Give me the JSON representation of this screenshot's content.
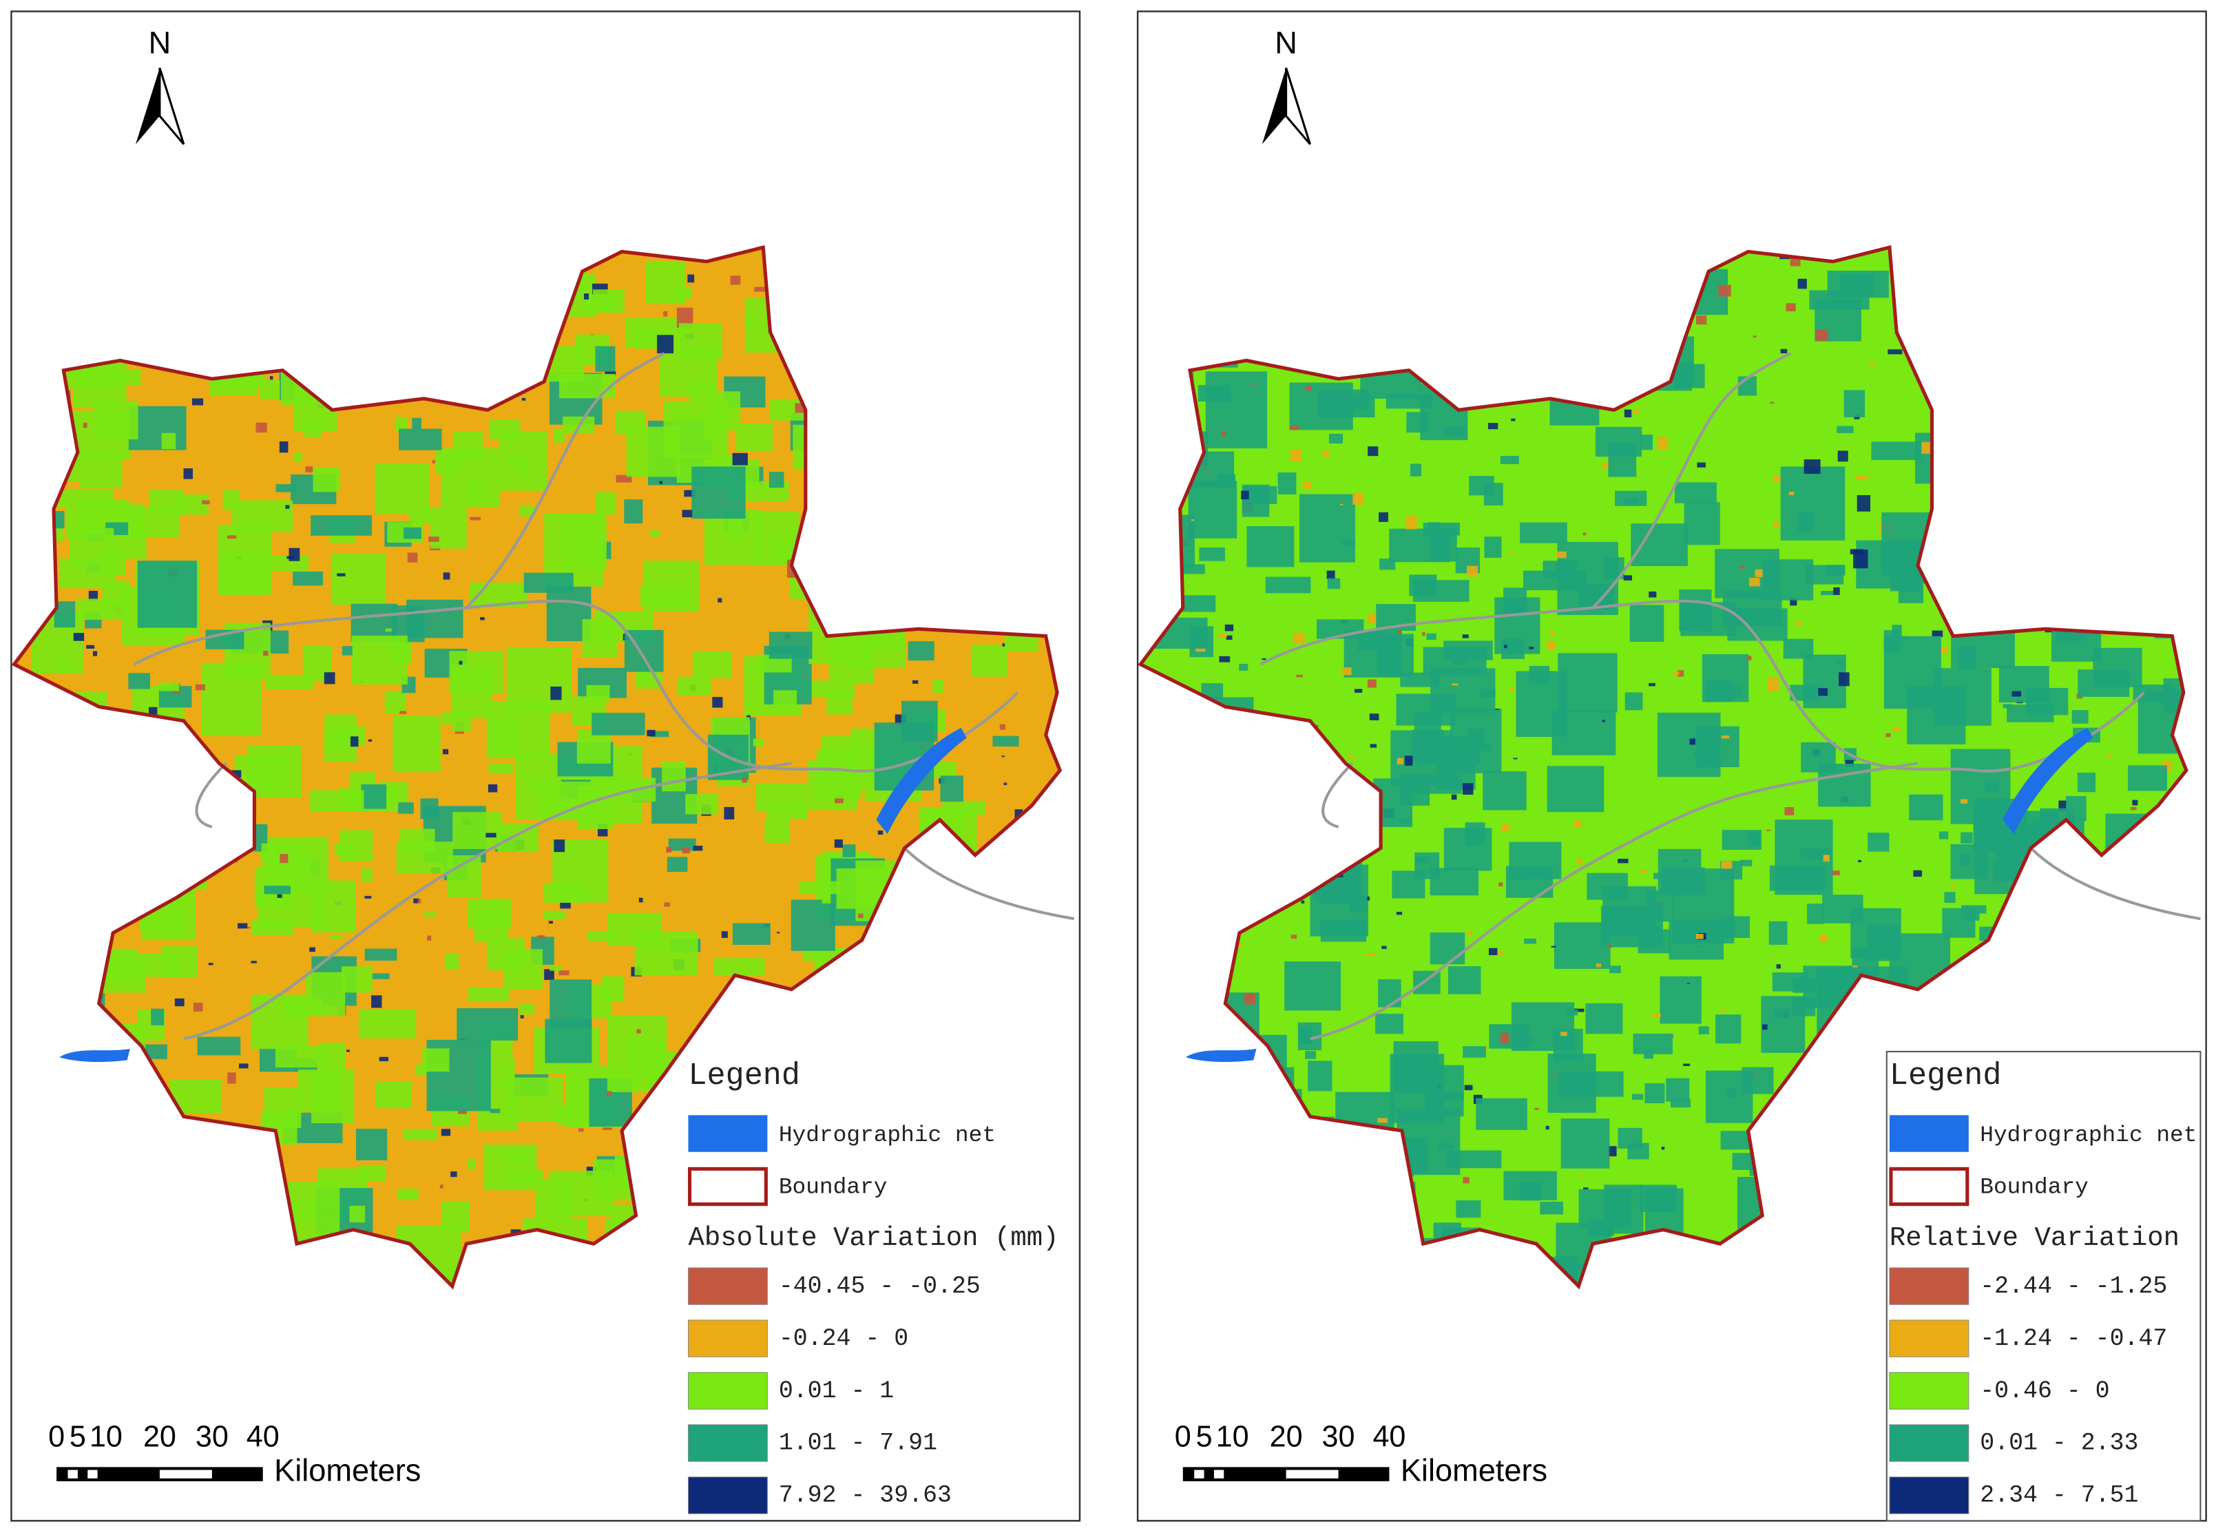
{
  "maps": [
    {
      "north": "N",
      "legend": {
        "title": "Legend",
        "items": [
          {
            "label": "Hydrographic net",
            "color": "#1f6fe8"
          },
          {
            "label": "Boundary",
            "color": "#a51c1c"
          }
        ],
        "variable_title": "Absolute Variation (mm)",
        "classes": [
          {
            "label": "-40.45 - -0.25",
            "color": "#c4573f"
          },
          {
            "label": "-0.24 - 0",
            "color": "#eaab14"
          },
          {
            "label": "0.01 - 1",
            "color": "#79e813"
          },
          {
            "label": "1.01 - 7.91",
            "color": "#1ea37a"
          },
          {
            "label": "7.92 - 39.63",
            "color": "#0c2a78"
          }
        ]
      },
      "scale": {
        "ticks": [
          "0",
          "5",
          "10",
          "20",
          "30",
          "40"
        ],
        "unit": "Kilometers"
      }
    },
    {
      "north": "N",
      "legend": {
        "title": "Legend",
        "items": [
          {
            "label": "Hydrographic net",
            "color": "#1f6fe8"
          },
          {
            "label": "Boundary",
            "color": "#a51c1c"
          }
        ],
        "variable_title": "Relative Variation",
        "classes": [
          {
            "label": "-2.44 - -1.25",
            "color": "#c4573f"
          },
          {
            "label": "-1.24 - -0.47",
            "color": "#eaab14"
          },
          {
            "label": "-0.46 - 0",
            "color": "#79e813"
          },
          {
            "label": "0.01 - 2.33",
            "color": "#1ea37a"
          },
          {
            "label": "2.34 - 7.51",
            "color": "#0c2a78"
          }
        ]
      },
      "scale": {
        "ticks": [
          "0",
          "5",
          "10",
          "20",
          "30",
          "40"
        ],
        "unit": "Kilometers"
      }
    }
  ]
}
